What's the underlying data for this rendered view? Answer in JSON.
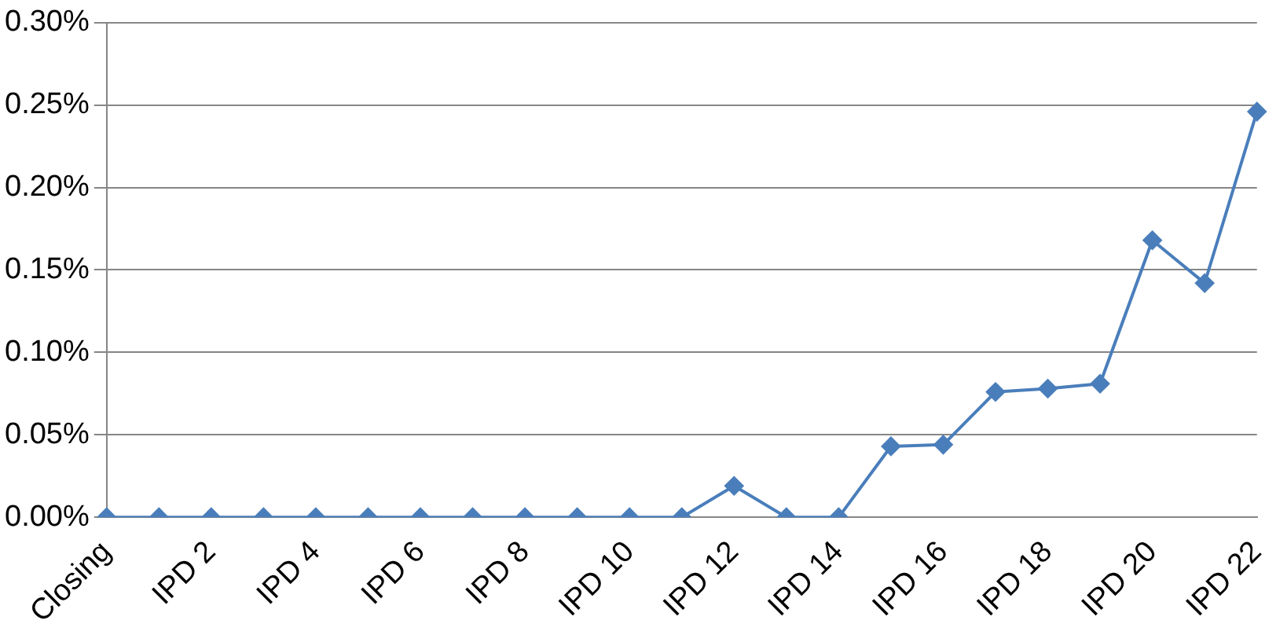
{
  "chart_data": {
    "type": "line",
    "categories": [
      "Closing",
      null,
      "IPD 2",
      null,
      "IPD 4",
      null,
      "IPD 6",
      null,
      "IPD 8",
      null,
      "IPD 10",
      null,
      "IPD 12",
      null,
      "IPD 14",
      null,
      "IPD 16",
      null,
      "IPD 18",
      null,
      "IPD 20",
      null,
      "IPD 22"
    ],
    "series": [
      {
        "color": "#4a7ebb",
        "values": [
          0,
          0,
          0,
          0,
          0,
          0,
          0,
          0,
          0,
          0,
          0,
          0,
          0.019,
          0,
          0,
          0.043,
          0.044,
          0.076,
          0.078,
          0.081,
          0.168,
          0.142,
          0.246
        ]
      }
    ],
    "ylim": [
      0,
      0.3
    ],
    "yticks": [
      {
        "value": 0,
        "label": "0.00%"
      },
      {
        "value": 0.05,
        "label": "0.05%"
      },
      {
        "value": 0.1,
        "label": "0.10%"
      },
      {
        "value": 0.15,
        "label": "0.15%"
      },
      {
        "value": 0.2,
        "label": "0.20%"
      },
      {
        "value": 0.25,
        "label": "0.25%"
      },
      {
        "value": 0.3,
        "label": "0.30%"
      }
    ],
    "grid": "y",
    "legend": false,
    "marker": "diamond",
    "line_style": "solid"
  }
}
